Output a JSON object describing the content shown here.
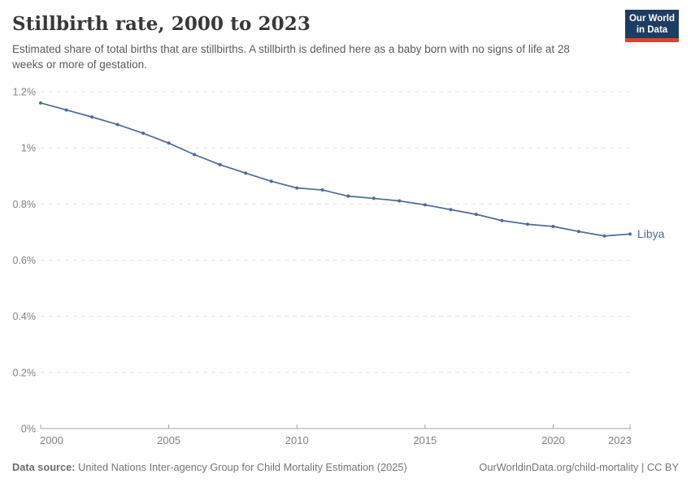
{
  "header": {
    "title": "Stillbirth rate, 2000 to 2023",
    "subtitle": "Estimated share of total births that are stillbirths. A stillbirth is defined here as a baby born with no signs of life at 28 weeks or more of gestation.",
    "logo": {
      "line1": "Our World",
      "line2": "in Data"
    }
  },
  "chart_data": {
    "type": "line",
    "title": "Stillbirth rate, 2000 to 2023",
    "xlabel": "",
    "ylabel": "",
    "unit": "%",
    "xlim": [
      2000,
      2023
    ],
    "ylim": [
      0,
      1.2
    ],
    "grid": "horizontal-dashed",
    "legend": "end-of-line-label",
    "x": [
      2000,
      2001,
      2002,
      2003,
      2004,
      2005,
      2006,
      2007,
      2008,
      2009,
      2010,
      2011,
      2012,
      2013,
      2014,
      2015,
      2016,
      2017,
      2018,
      2019,
      2020,
      2021,
      2022,
      2023
    ],
    "series": [
      {
        "name": "Libya",
        "values": [
          1.16,
          1.135,
          1.11,
          1.083,
          1.052,
          1.017,
          0.976,
          0.94,
          0.91,
          0.881,
          0.857,
          0.85,
          0.828,
          0.82,
          0.811,
          0.797,
          0.78,
          0.763,
          0.741,
          0.728,
          0.72,
          0.702,
          0.686,
          0.693
        ]
      }
    ],
    "yticks": [
      {
        "value": 0,
        "label": "0%"
      },
      {
        "value": 0.2,
        "label": "0.2%"
      },
      {
        "value": 0.4,
        "label": "0.4%"
      },
      {
        "value": 0.6,
        "label": "0.6%"
      },
      {
        "value": 0.8,
        "label": "0.8%"
      },
      {
        "value": 1,
        "label": "1%"
      },
      {
        "value": 1.2,
        "label": "1.2%"
      }
    ],
    "xticks": [
      {
        "value": 2000,
        "label": "2000"
      },
      {
        "value": 2005,
        "label": "2005"
      },
      {
        "value": 2010,
        "label": "2010"
      },
      {
        "value": 2015,
        "label": "2015"
      },
      {
        "value": 2020,
        "label": "2020"
      },
      {
        "value": 2023,
        "label": "2023"
      }
    ]
  },
  "footer": {
    "datasource_label": "Data source:",
    "datasource_text": "United Nations Inter-agency Group for Child Mortality Estimation (2025)",
    "attribution": "OurWorldinData.org/child-mortality | CC BY"
  },
  "colors": {
    "line": "#4c6a9c",
    "grid": "#e1e1e1",
    "axis": "#a3a3a3",
    "tick_label": "#818181",
    "series_label": "#4c6a9c"
  }
}
